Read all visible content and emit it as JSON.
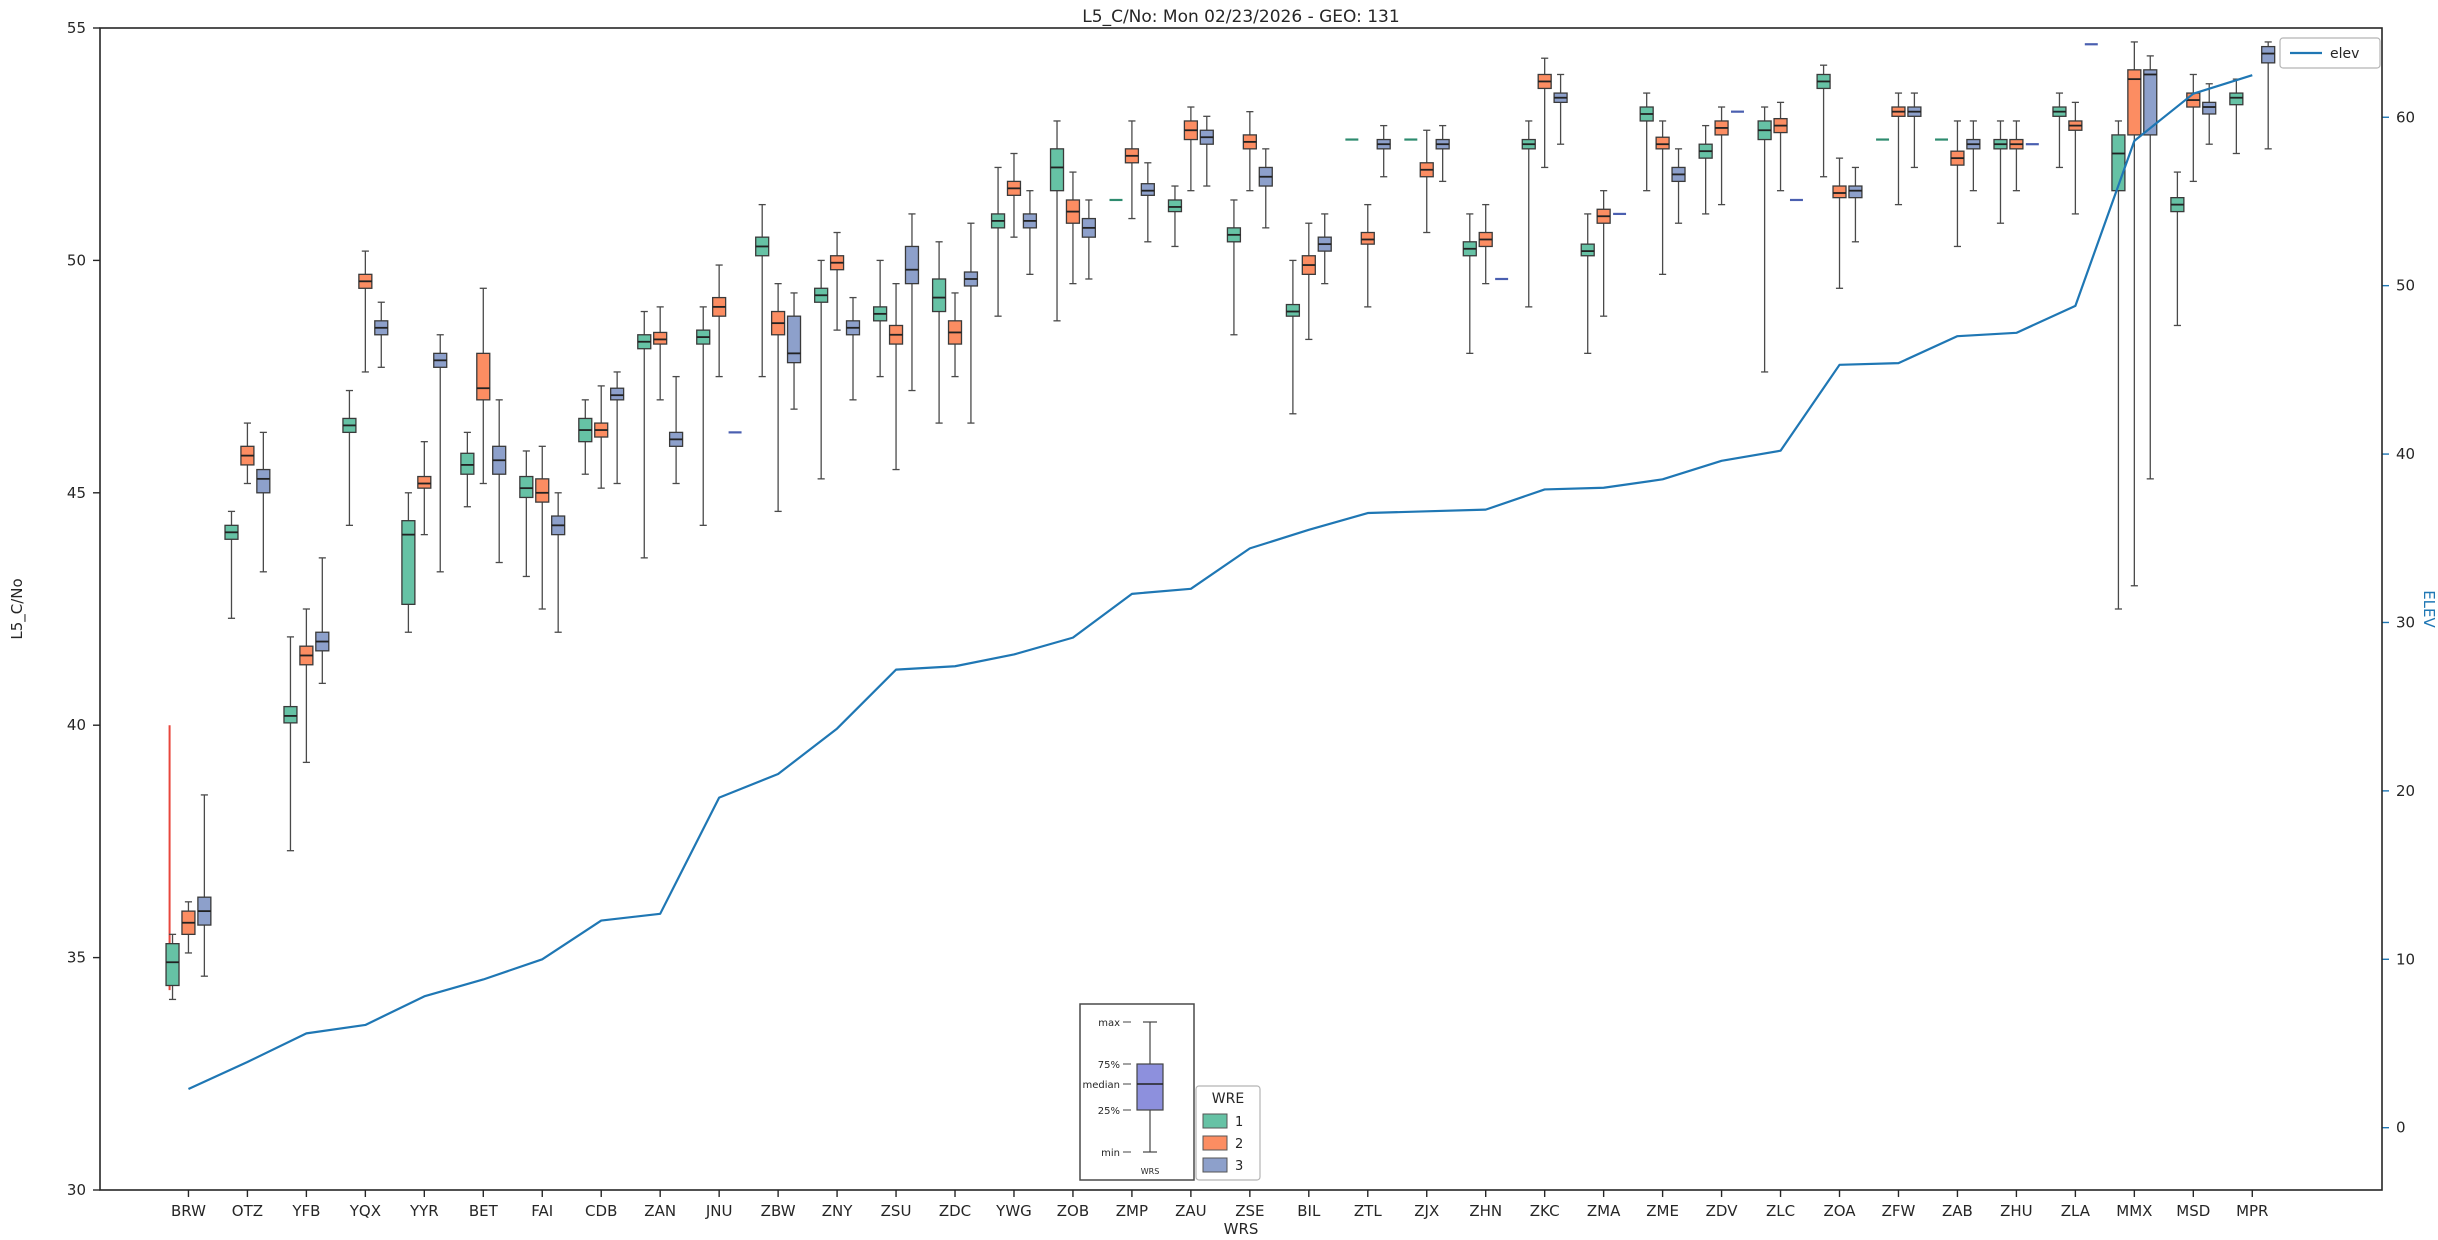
{
  "chart_data": {
    "type": "boxplot",
    "title": "L5_C/No: Mon 02/23/2026 - GEO: 131",
    "xlabel": "WRS",
    "ylabel": "L5_C/No",
    "y2label": "ELEV",
    "ylim": [
      30,
      55
    ],
    "y_ticks": [
      30,
      35,
      40,
      45,
      50,
      55
    ],
    "y2lim": [
      -3.7,
      65.3
    ],
    "y2_ticks": [
      0,
      10,
      20,
      30,
      40,
      50,
      60
    ],
    "xlim": [
      -0.5,
      38.2
    ],
    "grid": false,
    "groups": [
      "1",
      "2",
      "3"
    ],
    "group_colors": [
      "#66c2a5",
      "#fc8d62",
      "#8da0cb"
    ],
    "group_dash_colors": [
      "#2e8b6f",
      "#d86a3a",
      "#4a5fb0"
    ],
    "legend": {
      "title": "WRE",
      "entries": [
        "1",
        "2",
        "3"
      ]
    },
    "elev_legend_label": "elev",
    "elev_color": "#1f77b4",
    "annotation_line": {
      "station": "BRW",
      "x_offset": -0.32,
      "y_from": 34.3,
      "y_to": 40.0,
      "color": "#e8463c"
    },
    "inset": {
      "labels": [
        "max",
        "75%",
        "median",
        "25%",
        "min"
      ],
      "xlabel": "WRS",
      "box_color": "#8d90dd"
    },
    "box_value_order": [
      "whisker_low",
      "q1",
      "median",
      "q3",
      "whisker_high"
    ],
    "stations": [
      {
        "name": "BRW",
        "elev": 2.3,
        "boxes": [
          [
            34.1,
            34.4,
            34.9,
            35.3,
            35.5
          ],
          [
            35.1,
            35.5,
            35.75,
            36.0,
            36.2
          ],
          [
            34.6,
            35.7,
            36.0,
            36.3,
            38.5
          ]
        ]
      },
      {
        "name": "OTZ",
        "elev": 3.9,
        "boxes": [
          [
            42.3,
            44.0,
            44.15,
            44.3,
            44.6
          ],
          [
            45.2,
            45.6,
            45.8,
            46.0,
            46.5
          ],
          [
            43.3,
            45.0,
            45.3,
            45.5,
            46.3
          ]
        ]
      },
      {
        "name": "YFB",
        "elev": 5.6,
        "boxes": [
          [
            37.3,
            40.05,
            40.2,
            40.4,
            41.9
          ],
          [
            39.2,
            41.3,
            41.5,
            41.7,
            42.5
          ],
          [
            40.9,
            41.6,
            41.8,
            42.0,
            43.6
          ]
        ]
      },
      {
        "name": "YQX",
        "elev": 6.1,
        "boxes": [
          [
            44.3,
            46.3,
            46.45,
            46.6,
            47.2
          ],
          [
            47.6,
            49.4,
            49.55,
            49.7,
            50.2
          ],
          [
            47.7,
            48.4,
            48.55,
            48.7,
            49.1
          ]
        ]
      },
      {
        "name": "YYR",
        "elev": 7.8,
        "boxes": [
          [
            42.0,
            42.6,
            44.1,
            44.4,
            45.0
          ],
          [
            44.1,
            45.1,
            45.2,
            45.35,
            46.1
          ],
          [
            43.3,
            47.7,
            47.85,
            48.0,
            48.4
          ]
        ]
      },
      {
        "name": "BET",
        "elev": 8.8,
        "boxes": [
          [
            44.7,
            45.4,
            45.6,
            45.85,
            46.3
          ],
          [
            45.2,
            47.0,
            47.25,
            48.0,
            49.4
          ],
          [
            43.5,
            45.4,
            45.7,
            46.0,
            47.0
          ]
        ]
      },
      {
        "name": "FAI",
        "elev": 10.0,
        "boxes": [
          [
            43.2,
            44.9,
            45.1,
            45.35,
            45.9
          ],
          [
            42.5,
            44.8,
            45.0,
            45.3,
            46.0
          ],
          [
            42.0,
            44.1,
            44.3,
            44.5,
            45.0
          ]
        ]
      },
      {
        "name": "CDB",
        "elev": 12.3,
        "boxes": [
          [
            45.4,
            46.1,
            46.35,
            46.6,
            47.0
          ],
          [
            45.1,
            46.2,
            46.35,
            46.5,
            47.3
          ],
          [
            45.2,
            47.0,
            47.1,
            47.25,
            47.6
          ]
        ]
      },
      {
        "name": "ZAN",
        "elev": 12.7,
        "boxes": [
          [
            43.6,
            48.1,
            48.25,
            48.4,
            48.9
          ],
          [
            47.0,
            48.2,
            48.3,
            48.45,
            49.0
          ],
          [
            45.2,
            46.0,
            46.15,
            46.3,
            47.5
          ]
        ]
      },
      {
        "name": "JNU",
        "elev": 19.6,
        "boxes": [
          [
            44.3,
            48.2,
            48.35,
            48.5,
            49.0
          ],
          [
            47.5,
            48.8,
            49.0,
            49.2,
            49.9
          ],
          [
            46.3,
            46.3,
            46.3,
            46.3,
            46.3
          ]
        ]
      },
      {
        "name": "ZBW",
        "elev": 21.0,
        "boxes": [
          [
            47.5,
            50.1,
            50.3,
            50.5,
            51.2
          ],
          [
            44.6,
            48.4,
            48.65,
            48.9,
            49.5
          ],
          [
            46.8,
            47.8,
            48.0,
            48.8,
            49.3
          ]
        ]
      },
      {
        "name": "ZNY",
        "elev": 23.7,
        "boxes": [
          [
            45.3,
            49.1,
            49.25,
            49.4,
            50.0
          ],
          [
            48.5,
            49.8,
            49.95,
            50.1,
            50.6
          ],
          [
            47.0,
            48.4,
            48.55,
            48.7,
            49.2
          ]
        ]
      },
      {
        "name": "ZSU",
        "elev": 27.2,
        "boxes": [
          [
            47.5,
            48.7,
            48.85,
            49.0,
            50.0
          ],
          [
            45.5,
            48.2,
            48.4,
            48.6,
            49.5
          ],
          [
            47.2,
            49.5,
            49.8,
            50.3,
            51.0
          ]
        ]
      },
      {
        "name": "ZDC",
        "elev": 27.4,
        "boxes": [
          [
            46.5,
            48.9,
            49.2,
            49.6,
            50.4
          ],
          [
            47.5,
            48.2,
            48.45,
            48.7,
            49.3
          ],
          [
            46.5,
            49.45,
            49.6,
            49.75,
            50.8
          ]
        ]
      },
      {
        "name": "YWG",
        "elev": 28.1,
        "boxes": [
          [
            48.8,
            50.7,
            50.85,
            51.0,
            52.0
          ],
          [
            50.5,
            51.4,
            51.55,
            51.7,
            52.3
          ],
          [
            49.7,
            50.7,
            50.85,
            51.0,
            51.5
          ]
        ]
      },
      {
        "name": "ZOB",
        "elev": 29.1,
        "boxes": [
          [
            48.7,
            51.5,
            52.0,
            52.4,
            53.0
          ],
          [
            49.5,
            50.8,
            51.05,
            51.3,
            51.9
          ],
          [
            49.6,
            50.5,
            50.7,
            50.9,
            51.3
          ]
        ]
      },
      {
        "name": "ZMP",
        "elev": 31.7,
        "boxes": [
          [
            51.3,
            51.3,
            51.3,
            51.3,
            51.3
          ],
          [
            50.9,
            52.1,
            52.25,
            52.4,
            53.0
          ],
          [
            50.4,
            51.4,
            51.5,
            51.65,
            52.1
          ]
        ]
      },
      {
        "name": "ZAU",
        "elev": 32.0,
        "boxes": [
          [
            50.3,
            51.05,
            51.15,
            51.3,
            51.6
          ],
          [
            51.5,
            52.6,
            52.8,
            53.0,
            53.3
          ],
          [
            51.6,
            52.5,
            52.65,
            52.8,
            53.1
          ]
        ]
      },
      {
        "name": "ZSE",
        "elev": 34.4,
        "boxes": [
          [
            48.4,
            50.4,
            50.55,
            50.7,
            51.3
          ],
          [
            51.5,
            52.4,
            52.55,
            52.7,
            53.2
          ],
          [
            50.7,
            51.6,
            51.8,
            52.0,
            52.4
          ]
        ]
      },
      {
        "name": "BIL",
        "elev": 35.5,
        "boxes": [
          [
            46.7,
            48.8,
            48.9,
            49.05,
            50.0
          ],
          [
            48.3,
            49.7,
            49.9,
            50.1,
            50.8
          ],
          [
            49.5,
            50.2,
            50.35,
            50.5,
            51.0
          ]
        ]
      },
      {
        "name": "ZTL",
        "elev": 36.5,
        "boxes": [
          [
            52.6,
            52.6,
            52.6,
            52.6,
            52.6
          ],
          [
            49.0,
            50.35,
            50.45,
            50.6,
            51.2
          ],
          [
            51.8,
            52.4,
            52.5,
            52.6,
            52.9
          ]
        ]
      },
      {
        "name": "ZJX",
        "elev": 36.6,
        "boxes": [
          [
            52.6,
            52.6,
            52.6,
            52.6,
            52.6
          ],
          [
            50.6,
            51.8,
            51.95,
            52.1,
            52.8
          ],
          [
            51.7,
            52.4,
            52.5,
            52.6,
            52.9
          ]
        ]
      },
      {
        "name": "ZHN",
        "elev": 36.7,
        "boxes": [
          [
            48.0,
            50.1,
            50.25,
            50.4,
            51.0
          ],
          [
            49.5,
            50.3,
            50.45,
            50.6,
            51.2
          ],
          [
            49.6,
            49.6,
            49.6,
            49.6,
            49.6
          ]
        ]
      },
      {
        "name": "ZKC",
        "elev": 37.9,
        "boxes": [
          [
            49.0,
            52.4,
            52.5,
            52.6,
            53.0
          ],
          [
            52.0,
            53.7,
            53.85,
            54.0,
            54.35
          ],
          [
            52.5,
            53.4,
            53.5,
            53.6,
            54.0
          ]
        ]
      },
      {
        "name": "ZMA",
        "elev": 38.0,
        "boxes": [
          [
            48.0,
            50.1,
            50.2,
            50.35,
            51.0
          ],
          [
            48.8,
            50.8,
            50.95,
            51.1,
            51.5
          ],
          [
            51.0,
            51.0,
            51.0,
            51.0,
            51.0
          ]
        ]
      },
      {
        "name": "ZME",
        "elev": 38.5,
        "boxes": [
          [
            51.5,
            53.0,
            53.15,
            53.3,
            53.6
          ],
          [
            49.7,
            52.4,
            52.5,
            52.65,
            53.0
          ],
          [
            50.8,
            51.7,
            51.85,
            52.0,
            52.4
          ]
        ]
      },
      {
        "name": "ZDV",
        "elev": 39.6,
        "boxes": [
          [
            51.0,
            52.2,
            52.35,
            52.5,
            52.9
          ],
          [
            51.2,
            52.7,
            52.85,
            53.0,
            53.3
          ],
          [
            53.2,
            53.2,
            53.2,
            53.2,
            53.2
          ]
        ]
      },
      {
        "name": "ZLC",
        "elev": 40.2,
        "boxes": [
          [
            47.6,
            52.6,
            52.8,
            53.0,
            53.3
          ],
          [
            51.5,
            52.75,
            52.9,
            53.05,
            53.4
          ],
          [
            51.3,
            51.3,
            51.3,
            51.3,
            51.3
          ]
        ]
      },
      {
        "name": "ZOA",
        "elev": 45.3,
        "boxes": [
          [
            51.8,
            53.7,
            53.85,
            54.0,
            54.2
          ],
          [
            49.4,
            51.35,
            51.45,
            51.6,
            52.2
          ],
          [
            50.4,
            51.35,
            51.5,
            51.6,
            52.0
          ]
        ]
      },
      {
        "name": "ZFW",
        "elev": 45.4,
        "boxes": [
          [
            52.6,
            52.6,
            52.6,
            52.6,
            52.6
          ],
          [
            51.2,
            53.1,
            53.2,
            53.3,
            53.6
          ],
          [
            52.0,
            53.1,
            53.2,
            53.3,
            53.6
          ]
        ]
      },
      {
        "name": "ZAB",
        "elev": 47.0,
        "boxes": [
          [
            52.6,
            52.6,
            52.6,
            52.6,
            52.6
          ],
          [
            50.3,
            52.05,
            52.2,
            52.35,
            53.0
          ],
          [
            51.5,
            52.4,
            52.5,
            52.6,
            53.0
          ]
        ]
      },
      {
        "name": "ZHU",
        "elev": 47.2,
        "boxes": [
          [
            50.8,
            52.4,
            52.5,
            52.6,
            53.0
          ],
          [
            51.5,
            52.4,
            52.5,
            52.6,
            53.0
          ],
          [
            52.5,
            52.5,
            52.5,
            52.5,
            52.5
          ]
        ]
      },
      {
        "name": "ZLA",
        "elev": 48.8,
        "boxes": [
          [
            52.0,
            53.1,
            53.2,
            53.3,
            53.6
          ],
          [
            51.0,
            52.8,
            52.9,
            53.0,
            53.4
          ],
          [
            54.65,
            54.65,
            54.65,
            54.65,
            54.65
          ]
        ]
      },
      {
        "name": "MMX",
        "elev": 58.6,
        "boxes": [
          [
            42.5,
            51.5,
            52.3,
            52.7,
            53.0
          ],
          [
            43.0,
            52.7,
            53.9,
            54.1,
            54.7
          ],
          [
            45.3,
            52.7,
            54.0,
            54.1,
            54.4
          ]
        ]
      },
      {
        "name": "MSD",
        "elev": 61.4,
        "boxes": [
          [
            48.6,
            51.05,
            51.2,
            51.35,
            51.9
          ],
          [
            51.7,
            53.3,
            53.45,
            53.6,
            54.0
          ],
          [
            52.5,
            53.15,
            53.3,
            53.4,
            53.8
          ]
        ]
      },
      {
        "name": "MPR",
        "elev": 62.5,
        "boxes": [
          [
            52.3,
            53.35,
            53.5,
            53.6,
            53.9
          ],
          null,
          [
            52.4,
            54.25,
            54.45,
            54.6,
            54.7
          ]
        ]
      }
    ]
  }
}
